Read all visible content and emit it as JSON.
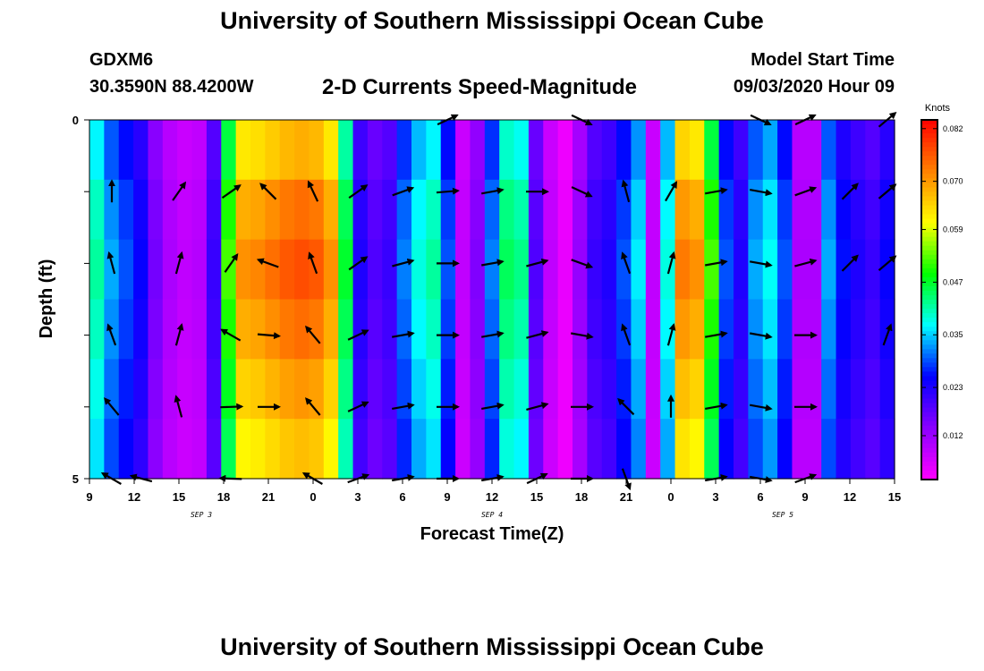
{
  "header": {
    "title": "University of Southern Mississippi Ocean Cube",
    "footer_title": "University of Southern Mississippi Ocean Cube",
    "station_id": "GDXM6",
    "station_coords": "30.3590N 88.4200W",
    "model_start_label": "Model Start Time",
    "model_start_value": "09/03/2020 Hour 09"
  },
  "chart_data": {
    "type": "heatmap",
    "title": "2-D Currents Speed-Magnitude",
    "xlabel": "Forecast Time(Z)",
    "ylabel": "Depth (ft)",
    "colorbar_label": "Knots",
    "x_range_hours": [
      0,
      54
    ],
    "x_ticks": [
      "9",
      "12",
      "15",
      "18",
      "21",
      "0",
      "3",
      "6",
      "9",
      "12",
      "15",
      "18",
      "21",
      "0",
      "3",
      "6",
      "9",
      "12",
      "15"
    ],
    "date_labels": [
      {
        "text": "SEP 3",
        "at_hour": 7.5
      },
      {
        "text": "SEP 4",
        "at_hour": 27
      },
      {
        "text": "SEP 5",
        "at_hour": 46.5
      }
    ],
    "y_range_ft": [
      0,
      5
    ],
    "y_ticks": [
      "0",
      "5"
    ],
    "colorbar_ticks": [
      "0.082",
      "0.070",
      "0.059",
      "0.047",
      "0.035",
      "0.023",
      "0.012"
    ],
    "colorbar_range": [
      0.002,
      0.084
    ],
    "colors": {
      "magenta": "#ff00ff",
      "purple": "#8a00ff",
      "blue": "#0000ff",
      "cyan": "#00ffff",
      "green": "#00ff00",
      "yellow": "#ffff00",
      "orange": "#ff8000",
      "red": "#ff0000"
    },
    "speed_profile_knots": [
      0.04,
      0.032,
      0.028,
      0.024,
      0.015,
      0.01,
      0.008,
      0.009,
      0.02,
      0.05,
      0.068,
      0.069,
      0.071,
      0.073,
      0.074,
      0.073,
      0.068,
      0.045,
      0.022,
      0.018,
      0.02,
      0.03,
      0.037,
      0.04,
      0.028,
      0.008,
      0.014,
      0.03,
      0.043,
      0.041,
      0.018,
      0.008,
      0.004,
      0.012,
      0.02,
      0.022,
      0.028,
      0.035,
      0.008,
      0.037,
      0.07,
      0.068,
      0.05,
      0.028,
      0.022,
      0.032,
      0.036,
      0.028,
      0.01,
      0.01,
      0.032,
      0.025,
      0.022,
      0.02,
      0.024
    ],
    "depth_factors": [
      0.92,
      1.0,
      1.04,
      1.0,
      0.95,
      0.9
    ],
    "vector_depths_ft": [
      0,
      1,
      2,
      3,
      4,
      5
    ],
    "vectors": [
      {
        "hour": 1.5,
        "directions_deg": [
          null,
          0,
          -15,
          -20,
          -40,
          -60
        ]
      },
      {
        "hour": 3.5,
        "directions_deg": [
          null,
          null,
          null,
          null,
          null,
          -75
        ]
      },
      {
        "hour": 6,
        "directions_deg": [
          null,
          35,
          15,
          15,
          -15,
          null
        ]
      },
      {
        "hour": 9.5,
        "directions_deg": [
          null,
          55,
          35,
          -60,
          88,
          -88
        ]
      },
      {
        "hour": 12,
        "directions_deg": [
          null,
          -45,
          -70,
          95,
          90,
          null
        ]
      },
      {
        "hour": 15,
        "directions_deg": [
          null,
          -25,
          -20,
          -40,
          -40,
          -60
        ]
      },
      {
        "hour": 18,
        "directions_deg": [
          null,
          55,
          55,
          65,
          65,
          70
        ]
      },
      {
        "hour": 21,
        "directions_deg": [
          null,
          70,
          75,
          80,
          80,
          80
        ]
      },
      {
        "hour": 24,
        "directions_deg": [
          65,
          85,
          90,
          90,
          90,
          90
        ]
      },
      {
        "hour": 27,
        "directions_deg": [
          null,
          80,
          80,
          80,
          80,
          80
        ]
      },
      {
        "hour": 30,
        "directions_deg": [
          null,
          90,
          75,
          75,
          75,
          65
        ]
      },
      {
        "hour": 33,
        "directions_deg": [
          115,
          115,
          110,
          100,
          90,
          90
        ]
      },
      {
        "hour": 36,
        "directions_deg": [
          null,
          -15,
          -20,
          -20,
          -45,
          160
        ]
      },
      {
        "hour": 39,
        "directions_deg": [
          null,
          30,
          15,
          15,
          0,
          null
        ]
      },
      {
        "hour": 42,
        "directions_deg": [
          null,
          80,
          80,
          80,
          80,
          80
        ]
      },
      {
        "hour": 45,
        "directions_deg": [
          115,
          100,
          100,
          100,
          100,
          100
        ]
      },
      {
        "hour": 48,
        "directions_deg": [
          65,
          70,
          75,
          90,
          90,
          70
        ]
      },
      {
        "hour": 51,
        "directions_deg": [
          null,
          45,
          45,
          null,
          null,
          null
        ]
      },
      {
        "hour": 53.5,
        "directions_deg": [
          50,
          50,
          50,
          20,
          null,
          null
        ]
      }
    ]
  }
}
